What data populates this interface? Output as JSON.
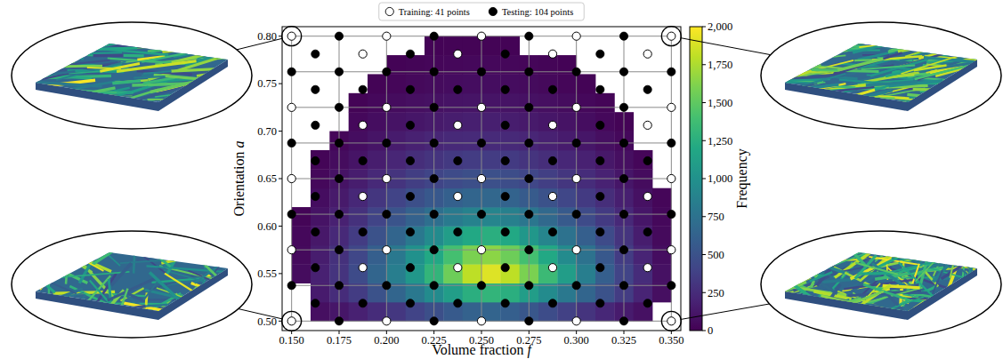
{
  "chart_data": {
    "type": "heatmap-scatter",
    "x_label": "Volume fraction f",
    "y_label": "Orientation a",
    "xlim": [
      0.145,
      0.355
    ],
    "ylim": [
      0.49,
      0.81
    ],
    "xticks": [
      {
        "value": 0.15,
        "label": "0.150"
      },
      {
        "value": 0.175,
        "label": "0.175"
      },
      {
        "value": 0.2,
        "label": "0.200"
      },
      {
        "value": 0.225,
        "label": "0.225"
      },
      {
        "value": 0.25,
        "label": "0.250"
      },
      {
        "value": 0.275,
        "label": "0.275"
      },
      {
        "value": 0.3,
        "label": "0.300"
      },
      {
        "value": 0.325,
        "label": "0.325"
      },
      {
        "value": 0.35,
        "label": "0.350"
      }
    ],
    "yticks": [
      {
        "value": 0.5,
        "label": "0.50"
      },
      0.55,
      {
        "value": 0.6,
        "label": "0.60"
      },
      0.65,
      {
        "value": 0.7,
        "label": "0.70"
      },
      0.75,
      {
        "value": 0.8,
        "label": "0.80"
      }
    ],
    "grid": true,
    "grid_x": [
      0.15,
      0.175,
      0.2,
      0.225,
      0.25,
      0.275,
      0.3,
      0.325,
      0.35
    ],
    "grid_y": [
      0.5,
      0.5375,
      0.575,
      0.6125,
      0.65,
      0.6875,
      0.725,
      0.7625,
      0.8
    ],
    "legend": "top",
    "heatmap": {
      "x_bins": [
        0.15,
        0.16,
        0.17,
        0.18,
        0.19,
        0.2,
        0.21,
        0.22,
        0.23,
        0.24,
        0.25,
        0.26,
        0.27,
        0.28,
        0.29,
        0.3,
        0.31,
        0.32,
        0.33,
        0.34,
        0.35
      ],
      "y_bins": [
        0.5,
        0.52,
        0.54,
        0.56,
        0.58,
        0.6,
        0.62,
        0.64,
        0.66,
        0.68,
        0.7,
        0.72,
        0.74,
        0.76,
        0.78,
        0.8
      ],
      "values": [
        [
          null,
          80,
          120,
          180,
          250,
          320,
          400,
          480,
          560,
          620,
          640,
          600,
          540,
          460,
          380,
          300,
          220,
          150,
          90,
          null
        ],
        [
          null,
          150,
          250,
          350,
          500,
          650,
          800,
          950,
          1100,
          1250,
          1300,
          1250,
          1100,
          950,
          800,
          650,
          500,
          350,
          200,
          80
        ],
        [
          60,
          180,
          300,
          450,
          650,
          850,
          1050,
          1300,
          1550,
          1800,
          1900,
          1800,
          1600,
          1350,
          1100,
          850,
          600,
          400,
          250,
          90
        ],
        [
          50,
          160,
          280,
          420,
          600,
          800,
          1000,
          1200,
          1400,
          1600,
          1650,
          1550,
          1400,
          1200,
          950,
          750,
          550,
          350,
          200,
          70
        ],
        [
          40,
          130,
          230,
          350,
          500,
          650,
          800,
          950,
          1100,
          1200,
          1250,
          1200,
          1050,
          900,
          750,
          600,
          450,
          300,
          160,
          50
        ],
        [
          20,
          100,
          180,
          280,
          400,
          520,
          620,
          730,
          820,
          880,
          900,
          860,
          780,
          680,
          560,
          450,
          340,
          230,
          120,
          40
        ],
        [
          null,
          70,
          140,
          220,
          310,
          400,
          480,
          550,
          610,
          650,
          660,
          630,
          570,
          500,
          420,
          340,
          260,
          170,
          90,
          30
        ],
        [
          null,
          40,
          100,
          160,
          230,
          300,
          360,
          410,
          450,
          480,
          490,
          470,
          420,
          370,
          310,
          250,
          190,
          120,
          60,
          null
        ],
        [
          null,
          20,
          60,
          110,
          160,
          210,
          260,
          300,
          330,
          350,
          350,
          340,
          300,
          260,
          220,
          180,
          130,
          80,
          30,
          null
        ],
        [
          null,
          null,
          30,
          70,
          110,
          150,
          180,
          210,
          230,
          240,
          240,
          230,
          210,
          180,
          150,
          120,
          80,
          40,
          null,
          null
        ],
        [
          null,
          null,
          null,
          40,
          70,
          100,
          120,
          140,
          160,
          170,
          170,
          160,
          140,
          120,
          100,
          70,
          40,
          15,
          null,
          null
        ],
        [
          null,
          null,
          null,
          15,
          40,
          60,
          80,
          90,
          100,
          110,
          110,
          100,
          90,
          80,
          60,
          40,
          20,
          null,
          null,
          null
        ],
        [
          null,
          null,
          null,
          null,
          15,
          30,
          45,
          55,
          65,
          70,
          70,
          65,
          55,
          45,
          30,
          15,
          null,
          null,
          null,
          null
        ],
        [
          null,
          null,
          null,
          null,
          null,
          10,
          20,
          30,
          35,
          40,
          40,
          35,
          30,
          20,
          10,
          null,
          null,
          null,
          null,
          null
        ],
        [
          null,
          null,
          null,
          null,
          null,
          null,
          null,
          10,
          15,
          15,
          15,
          10,
          null,
          null,
          null,
          null,
          null,
          null,
          null,
          null
        ]
      ]
    },
    "colorbar": {
      "label": "Frequency",
      "lim": [
        0,
        2000
      ],
      "ticks": [
        0,
        250,
        500,
        750,
        {
          "value": 1000,
          "label": "1,000"
        },
        {
          "value": 1250,
          "label": "1,250"
        },
        {
          "value": 1500,
          "label": "1,500"
        },
        {
          "value": 1750,
          "label": "1,750"
        },
        {
          "value": 2000,
          "label": "2,000"
        }
      ]
    },
    "series": [
      {
        "name": "Training: 41 points",
        "marker": "open-circle",
        "color": "#ffffff",
        "x": [
          0.15,
          0.2,
          0.25,
          0.3,
          0.35,
          0.15,
          0.2,
          0.25,
          0.3,
          0.35,
          0.15,
          0.2,
          0.25,
          0.3,
          0.35,
          0.15,
          0.2,
          0.25,
          0.3,
          0.35,
          0.15,
          0.2,
          0.25,
          0.3,
          0.35,
          0.1875,
          0.2375,
          0.2875,
          0.3375,
          0.1875,
          0.2375,
          0.2875,
          0.3375,
          0.1875,
          0.2375,
          0.2875,
          0.3375,
          0.1875,
          0.2375,
          0.2875,
          0.3375
        ],
        "y": [
          0.5,
          0.5,
          0.5,
          0.5,
          0.5,
          0.575,
          0.575,
          0.575,
          0.575,
          0.575,
          0.65,
          0.65,
          0.65,
          0.65,
          0.65,
          0.725,
          0.725,
          0.725,
          0.725,
          0.725,
          0.8,
          0.8,
          0.8,
          0.8,
          0.8,
          0.55625,
          0.55625,
          0.55625,
          0.55625,
          0.63125,
          0.63125,
          0.63125,
          0.63125,
          0.70625,
          0.70625,
          0.70625,
          0.70625,
          0.78125,
          0.78125,
          0.78125,
          0.78125
        ]
      },
      {
        "name": "Testing: 104 points",
        "marker": "filled-circle",
        "color": "#000000",
        "x": [
          0.175,
          0.225,
          0.275,
          0.325,
          0.175,
          0.225,
          0.275,
          0.325,
          0.175,
          0.225,
          0.275,
          0.325,
          0.175,
          0.225,
          0.275,
          0.325,
          0.175,
          0.225,
          0.275,
          0.325,
          0.15,
          0.175,
          0.2,
          0.225,
          0.25,
          0.275,
          0.3,
          0.325,
          0.35,
          0.15,
          0.175,
          0.2,
          0.225,
          0.25,
          0.275,
          0.3,
          0.325,
          0.35,
          0.15,
          0.175,
          0.2,
          0.225,
          0.25,
          0.275,
          0.3,
          0.325,
          0.35,
          0.15,
          0.175,
          0.2,
          0.225,
          0.25,
          0.275,
          0.3,
          0.325,
          0.35,
          0.1625,
          0.1875,
          0.2125,
          0.2375,
          0.2625,
          0.2875,
          0.3125,
          0.3375,
          0.1625,
          0.1875,
          0.2125,
          0.2375,
          0.2625,
          0.2875,
          0.3125,
          0.3375,
          0.1625,
          0.1875,
          0.2125,
          0.2375,
          0.2625,
          0.2875,
          0.3125,
          0.3375,
          0.1625,
          0.1875,
          0.2125,
          0.2375,
          0.2625,
          0.2875,
          0.3125,
          0.3375,
          0.1625,
          0.2125,
          0.2625,
          0.3125,
          0.1625,
          0.2125,
          0.2625,
          0.3125,
          0.1625,
          0.2125,
          0.2625,
          0.3125,
          0.1625,
          0.2125,
          0.2625,
          0.3125
        ],
        "y": [
          0.5,
          0.5,
          0.5,
          0.5,
          0.575,
          0.575,
          0.575,
          0.575,
          0.65,
          0.65,
          0.65,
          0.65,
          0.725,
          0.725,
          0.725,
          0.725,
          0.8,
          0.8,
          0.8,
          0.8,
          0.5375,
          0.5375,
          0.5375,
          0.5375,
          0.5375,
          0.5375,
          0.5375,
          0.5375,
          0.5375,
          0.6125,
          0.6125,
          0.6125,
          0.6125,
          0.6125,
          0.6125,
          0.6125,
          0.6125,
          0.6125,
          0.6875,
          0.6875,
          0.6875,
          0.6875,
          0.6875,
          0.6875,
          0.6875,
          0.6875,
          0.6875,
          0.7625,
          0.7625,
          0.7625,
          0.7625,
          0.7625,
          0.7625,
          0.7625,
          0.7625,
          0.7625,
          0.51875,
          0.51875,
          0.51875,
          0.51875,
          0.51875,
          0.51875,
          0.51875,
          0.51875,
          0.59375,
          0.59375,
          0.59375,
          0.59375,
          0.59375,
          0.59375,
          0.59375,
          0.59375,
          0.66875,
          0.66875,
          0.66875,
          0.66875,
          0.66875,
          0.66875,
          0.66875,
          0.66875,
          0.74375,
          0.74375,
          0.74375,
          0.74375,
          0.74375,
          0.74375,
          0.74375,
          0.74375,
          0.55625,
          0.55625,
          0.55625,
          0.55625,
          0.63125,
          0.63125,
          0.63125,
          0.63125,
          0.70625,
          0.70625,
          0.70625,
          0.70625,
          0.78125,
          0.78125,
          0.78125,
          0.78125
        ]
      }
    ],
    "highlighted": [
      {
        "x": 0.15,
        "y": 0.8
      },
      {
        "x": 0.35,
        "y": 0.8
      },
      {
        "x": 0.15,
        "y": 0.5
      },
      {
        "x": 0.35,
        "y": 0.5
      }
    ]
  }
}
